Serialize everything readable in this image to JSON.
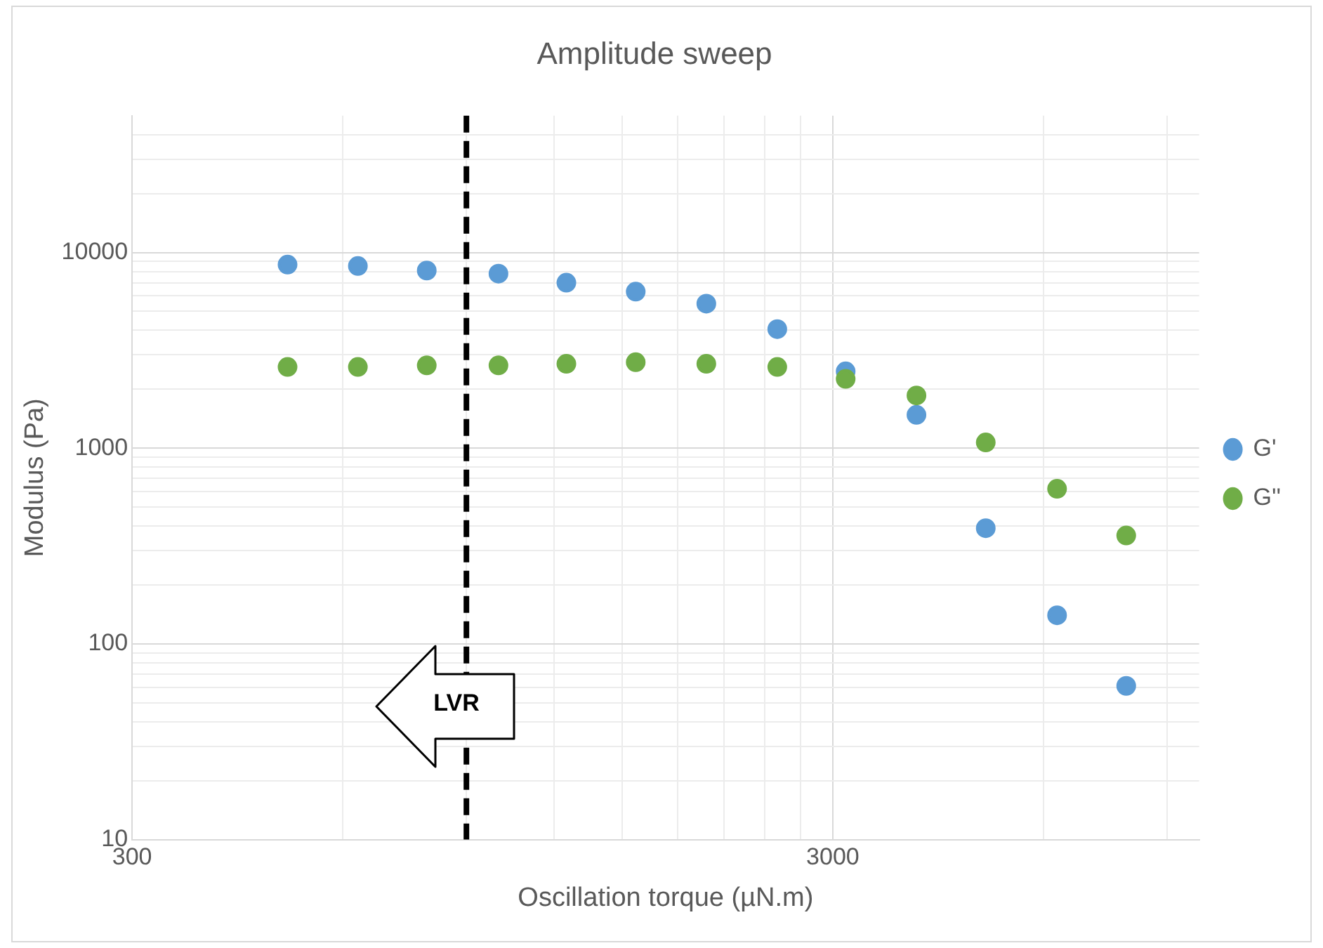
{
  "chart_data": {
    "type": "scatter",
    "title": "Amplitude sweep",
    "xlabel": "Oscillation torque (µN.m)",
    "ylabel": "Modulus (Pa)",
    "log": "xy",
    "grid": true,
    "legend": "right",
    "marker": "circle",
    "xlim": [
      300,
      10000
    ],
    "xticks": [
      300,
      {
        "value": 600,
        "label": null
      },
      {
        "value": 900,
        "label": null
      },
      {
        "value": 1200,
        "label": null
      },
      {
        "value": 1500,
        "label": null
      },
      {
        "value": 1800,
        "label": null
      },
      {
        "value": 2100,
        "label": null
      },
      {
        "value": 2400,
        "label": null
      },
      {
        "value": 2700,
        "label": null
      },
      3000,
      {
        "value": 6000,
        "label": null
      },
      {
        "value": 9000,
        "label": null
      }
    ],
    "ylim": [
      10,
      50000
    ],
    "yticks": [
      10,
      {
        "value": 20,
        "label": null
      },
      {
        "value": 30,
        "label": null
      },
      {
        "value": 40,
        "label": null
      },
      {
        "value": 50,
        "label": null
      },
      {
        "value": 60,
        "label": null
      },
      {
        "value": 70,
        "label": null
      },
      {
        "value": 80,
        "label": null
      },
      {
        "value": 90,
        "label": null
      },
      100,
      {
        "value": 200,
        "label": null
      },
      {
        "value": 300,
        "label": null
      },
      {
        "value": 400,
        "label": null
      },
      {
        "value": 500,
        "label": null
      },
      {
        "value": 600,
        "label": null
      },
      {
        "value": 700,
        "label": null
      },
      {
        "value": 800,
        "label": null
      },
      {
        "value": 900,
        "label": null
      },
      1000,
      {
        "value": 2000,
        "label": null
      },
      {
        "value": 3000,
        "label": null
      },
      {
        "value": 4000,
        "label": null
      },
      {
        "value": 5000,
        "label": null
      },
      {
        "value": 6000,
        "label": null
      },
      {
        "value": 7000,
        "label": null
      },
      {
        "value": 8000,
        "label": null
      },
      {
        "value": 9000,
        "label": null
      },
      10000,
      {
        "value": 20000,
        "label": null
      },
      {
        "value": 30000,
        "label": null
      },
      {
        "value": 40000,
        "label": null
      }
    ],
    "x": [
      500,
      630,
      790,
      1000,
      1250,
      1570,
      1980,
      2500,
      3130,
      3950,
      4960,
      6270,
      7870
    ],
    "series": [
      {
        "name": "G'",
        "color": "#5b9bd5",
        "values": [
          8670,
          8530,
          8090,
          7800,
          7010,
          6310,
          5480,
          4060,
          2470,
          1480,
          390,
          140,
          61
        ]
      },
      {
        "name": "G''",
        "color": "#70ad47",
        "values": [
          2600,
          2600,
          2650,
          2650,
          2700,
          2750,
          2700,
          2600,
          2260,
          1860,
          1070,
          620,
          358
        ]
      }
    ],
    "ref_lines": [
      {
        "axis": "x",
        "value": 900,
        "color": "#000000",
        "line_style": "dashed"
      }
    ],
    "annotations": [
      "LVR"
    ]
  }
}
